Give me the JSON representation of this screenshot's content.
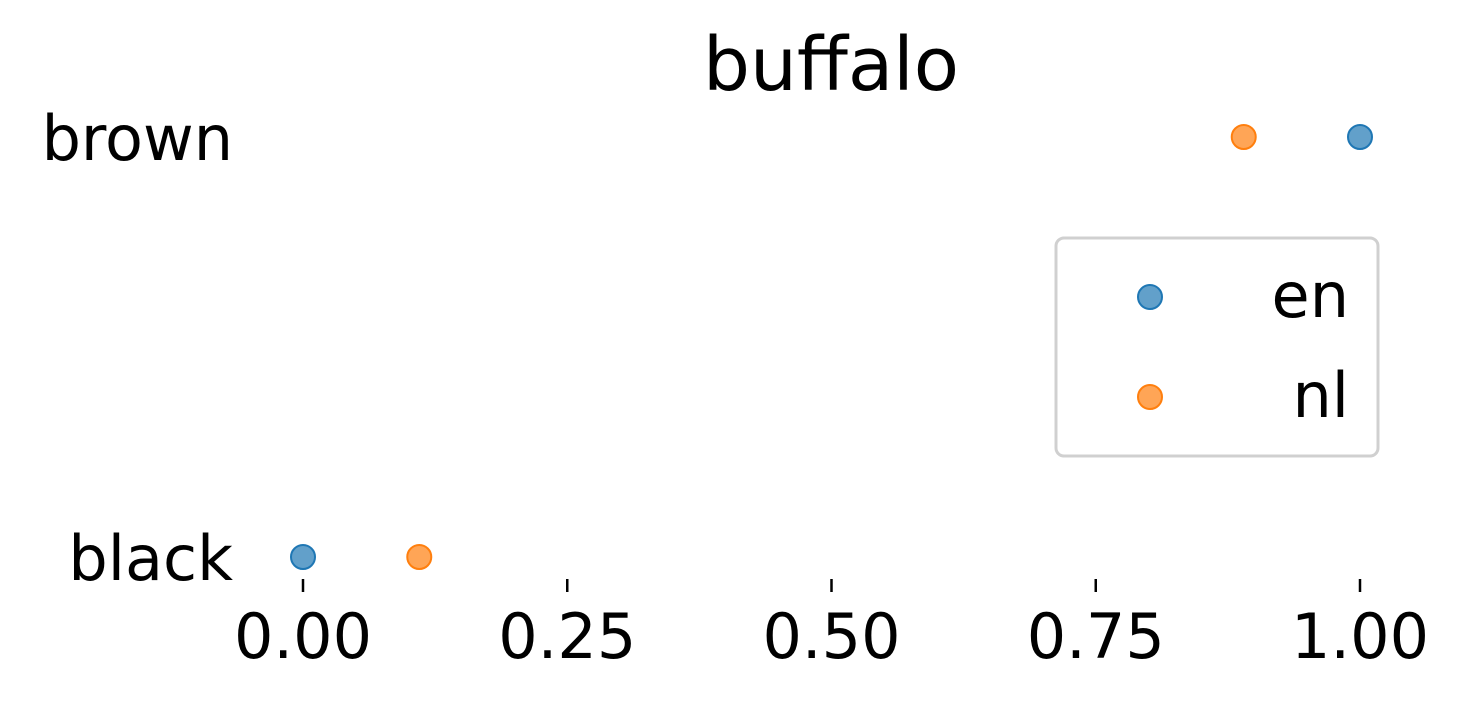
{
  "chart_data": {
    "type": "scatter",
    "title": "buffalo",
    "categories": [
      "brown",
      "black"
    ],
    "series": [
      {
        "name": "en",
        "color": "#1f77b4",
        "values": [
          1.0,
          0.0
        ]
      },
      {
        "name": "nl",
        "color": "#ff7f0e",
        "values": [
          0.89,
          0.11
        ]
      }
    ],
    "xticks": [
      "0.00",
      "0.25",
      "0.50",
      "0.75",
      "1.00"
    ],
    "xlim": [
      0,
      1
    ],
    "grid": false,
    "legend_position": "right"
  }
}
